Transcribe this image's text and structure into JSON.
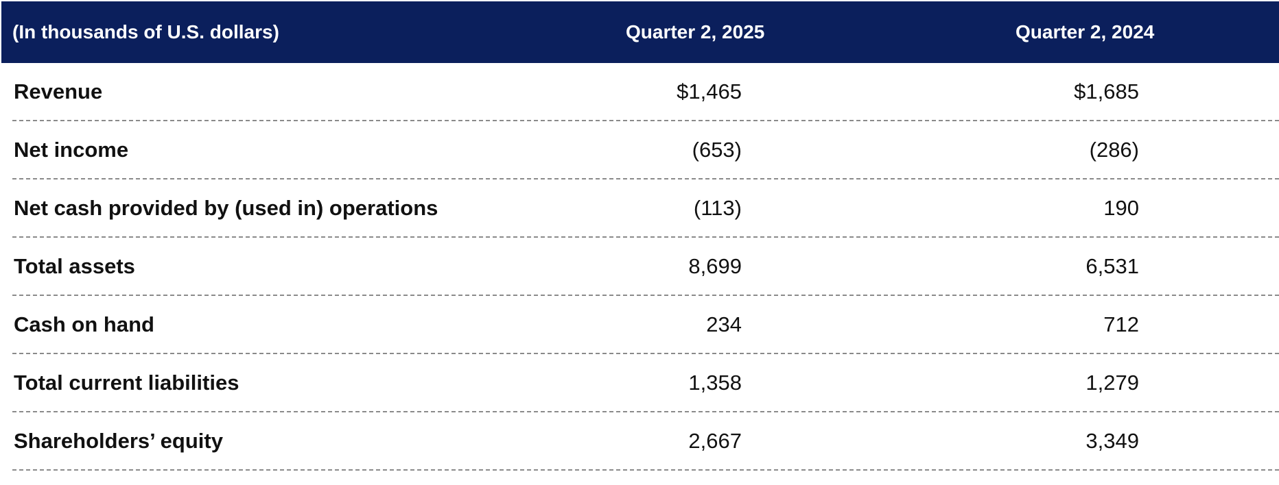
{
  "header": {
    "cells": [
      "(In thousands of U.S. dollars)",
      "Quarter 2, 2025",
      "Quarter 2, 2024"
    ]
  },
  "table": {
    "rows": [
      [
        "Revenue",
        "$1,465",
        "$1,685"
      ],
      [
        "Net income",
        "(653)",
        "(286)"
      ],
      [
        "Net cash provided by (used in) operations",
        "(113)",
        "190"
      ],
      [
        "Total assets",
        "8,699",
        "6,531"
      ],
      [
        "Cash on hand",
        "234",
        "712"
      ],
      [
        "Total current liabilities",
        "1,358",
        "1,279"
      ],
      [
        "Shareholders’ equity",
        "2,667",
        "3,349"
      ]
    ]
  }
}
